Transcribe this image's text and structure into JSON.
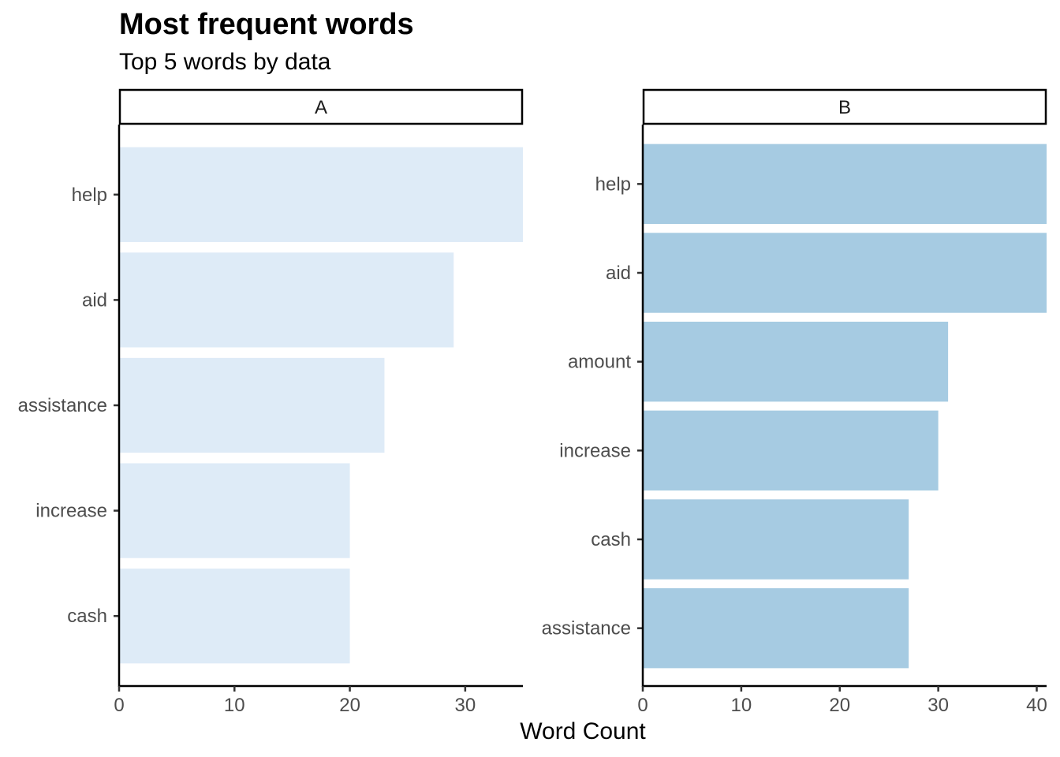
{
  "chart_data": {
    "type": "bar",
    "orientation": "horizontal",
    "title": "Most frequent words",
    "subtitle": "Top 5 words by data",
    "xlabel": "Word Count",
    "ylabel": "",
    "grid": false,
    "legend": "none",
    "panels": [
      {
        "name": "A",
        "color": "#deebf7",
        "xlim": [
          0,
          35
        ],
        "xticks": [
          0,
          10,
          20,
          30
        ],
        "categories": [
          "help",
          "aid",
          "assistance",
          "increase",
          "cash"
        ],
        "values": [
          35,
          29,
          23,
          20,
          20
        ]
      },
      {
        "name": "B",
        "color": "#a6cbe2",
        "xlim": [
          0,
          41
        ],
        "xticks": [
          0,
          10,
          20,
          30,
          40
        ],
        "categories": [
          "help",
          "aid",
          "amount",
          "increase",
          "cash",
          "assistance"
        ],
        "values": [
          41,
          41,
          31,
          30,
          27,
          27
        ]
      }
    ]
  }
}
